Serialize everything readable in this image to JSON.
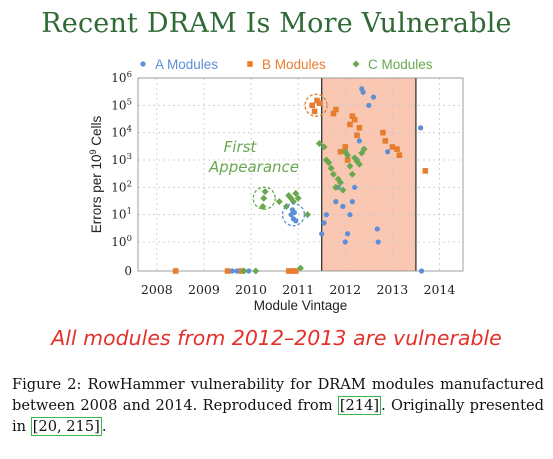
{
  "slide_title": "Recent DRAM Is More Vulnerable",
  "headline": {
    "prefix": "All modules from ",
    "years": "2012–2013",
    "suffix": " are vulnerable"
  },
  "caption": {
    "part1": "Figure 2: RowHammer vulnerability for DRAM modules manufactured between 2008 and 2014. Reproduced from ",
    "ref1": "[214]",
    "part2": ". Originally presented in ",
    "ref2": "[20, 215]",
    "part3": "."
  },
  "chart_data": {
    "type": "scatter",
    "xlabel": "Module Vintage",
    "ylabel": "Errors per 10^9 Cells",
    "x_ticks": [
      "2008",
      "2009",
      "2010",
      "2011",
      "2012",
      "2013",
      "2014"
    ],
    "y_ticks": [
      "0",
      "10^0",
      "10^1",
      "10^2",
      "10^3",
      "10^4",
      "10^5",
      "10^6"
    ],
    "xlim": [
      2007.6,
      2014.5
    ],
    "ylim": [
      0,
      1000000
    ],
    "y_scale": "symlog",
    "highlight_region": [
      2011.5,
      2013.5
    ],
    "highlight_color": "#f9c7b2",
    "annotation": {
      "line1": "First",
      "line2": "Appearance",
      "color": "#6aa84f"
    },
    "legend_position": "top",
    "series": [
      {
        "name": "A Modules",
        "color": "#5b8fd6",
        "marker": "circle",
        "points": [
          [
            2009.6,
            0
          ],
          [
            2009.7,
            0
          ],
          [
            2009.75,
            0
          ],
          [
            2009.95,
            0
          ],
          [
            2010.85,
            10
          ],
          [
            2010.88,
            15
          ],
          [
            2010.9,
            7
          ],
          [
            2010.92,
            12
          ],
          [
            2010.95,
            6
          ],
          [
            2011.5,
            2
          ],
          [
            2011.55,
            5
          ],
          [
            2011.6,
            10
          ],
          [
            2011.8,
            30
          ],
          [
            2011.85,
            100
          ],
          [
            2011.95,
            20
          ],
          [
            2012.0,
            1
          ],
          [
            2012.05,
            2
          ],
          [
            2012.1,
            10
          ],
          [
            2012.15,
            30
          ],
          [
            2012.2,
            100
          ],
          [
            2012.25,
            1000
          ],
          [
            2012.3,
            5000
          ],
          [
            2012.35,
            400000
          ],
          [
            2012.38,
            300000
          ],
          [
            2012.5,
            100000
          ],
          [
            2012.6,
            200000
          ],
          [
            2012.68,
            3
          ],
          [
            2012.7,
            1
          ],
          [
            2012.9,
            2000
          ],
          [
            2013.0,
            3000
          ],
          [
            2013.6,
            15000
          ],
          [
            2013.62,
            0
          ]
        ]
      },
      {
        "name": "B Modules",
        "color": "#e77d2e",
        "marker": "square",
        "points": [
          [
            2008.4,
            0
          ],
          [
            2009.5,
            0
          ],
          [
            2009.8,
            0
          ],
          [
            2010.8,
            0
          ],
          [
            2010.9,
            0
          ],
          [
            2010.95,
            0
          ],
          [
            2011.3,
            100000
          ],
          [
            2011.35,
            60000
          ],
          [
            2011.4,
            150000
          ],
          [
            2011.45,
            120000
          ],
          [
            2011.75,
            50000
          ],
          [
            2011.8,
            70000
          ],
          [
            2011.9,
            2000
          ],
          [
            2012.0,
            3000
          ],
          [
            2012.05,
            1000
          ],
          [
            2012.1,
            20000
          ],
          [
            2012.15,
            40000
          ],
          [
            2012.2,
            30000
          ],
          [
            2012.25,
            8000
          ],
          [
            2012.3,
            15000
          ],
          [
            2012.8,
            10000
          ],
          [
            2012.85,
            5000
          ],
          [
            2013.0,
            3000
          ],
          [
            2013.1,
            2500
          ],
          [
            2013.15,
            1500
          ],
          [
            2013.7,
            400
          ]
        ]
      },
      {
        "name": "C Modules",
        "color": "#6aa84f",
        "marker": "diamond",
        "points": [
          [
            2009.85,
            0
          ],
          [
            2010.1,
            0
          ],
          [
            2010.25,
            20
          ],
          [
            2010.27,
            40
          ],
          [
            2010.3,
            70
          ],
          [
            2010.6,
            30
          ],
          [
            2010.75,
            20
          ],
          [
            2010.8,
            50
          ],
          [
            2010.85,
            40
          ],
          [
            2010.9,
            30
          ],
          [
            2010.95,
            60
          ],
          [
            2011.0,
            40
          ],
          [
            2011.2,
            10
          ],
          [
            2011.05,
            0.1
          ],
          [
            2011.45,
            4000
          ],
          [
            2011.55,
            3000
          ],
          [
            2011.6,
            1000
          ],
          [
            2011.65,
            800
          ],
          [
            2011.7,
            500
          ],
          [
            2011.75,
            300
          ],
          [
            2011.8,
            100
          ],
          [
            2011.85,
            200
          ],
          [
            2011.9,
            150
          ],
          [
            2011.95,
            80
          ],
          [
            2012.0,
            2000
          ],
          [
            2012.05,
            1500
          ],
          [
            2012.1,
            600
          ],
          [
            2012.15,
            300
          ],
          [
            2012.2,
            1200
          ],
          [
            2012.25,
            900
          ],
          [
            2012.3,
            700
          ],
          [
            2012.35,
            1800
          ],
          [
            2012.4,
            2500
          ]
        ]
      }
    ]
  }
}
